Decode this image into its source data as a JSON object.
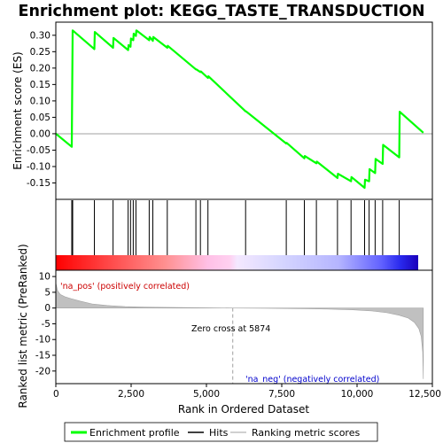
{
  "chart_data": {
    "type": "line",
    "title": "Enrichment plot: KEGG_TASTE_TRANSDUCTION",
    "xlabel": "Rank in Ordered Dataset",
    "ylabel_top": "Enrichment score (ES)",
    "ylabel_bottom": "Ranked list metric (PreRanked)",
    "xlim": [
      0,
      12500
    ],
    "ylim_es": [
      -0.2,
      0.34
    ],
    "ylim_metric": [
      -24,
      12
    ],
    "x_ticks": [
      0,
      2500,
      5000,
      7500,
      10000,
      12500
    ],
    "x_tick_labels": [
      "0",
      "2,500",
      "5,000",
      "7,500",
      "10,000",
      "12,500"
    ],
    "es_ticks": [
      0.3,
      0.25,
      0.2,
      0.15,
      0.1,
      0.05,
      0.0,
      -0.05,
      -0.1,
      -0.15
    ],
    "es_tick_labels": [
      "0.30",
      "0.25",
      "0.20",
      "0.15",
      "0.10",
      "0.05",
      "0.00",
      "-0.05",
      "-0.10",
      "-0.15"
    ],
    "metric_ticks": [
      10,
      5,
      0,
      -5,
      -10,
      -15,
      -20
    ],
    "metric_tick_labels": [
      "10",
      "5",
      "0",
      "-5",
      "-10",
      "-15",
      "-20"
    ],
    "series": [
      {
        "name": "Enrichment profile",
        "color": "#00ff00",
        "x": [
          0,
          530,
          545,
          560,
          1280,
          1295,
          1900,
          1915,
          2400,
          2415,
          2480,
          2495,
          2570,
          2585,
          2660,
          2675,
          3100,
          3115,
          3220,
          3235,
          3700,
          3715,
          4650,
          4665,
          4800,
          4815,
          5050,
          5065,
          6300,
          6315,
          7650,
          7665,
          8250,
          8265,
          8650,
          8665,
          9350,
          9365,
          9800,
          9815,
          10250,
          10265,
          10400,
          10415,
          10600,
          10615,
          10850,
          10865,
          11400,
          11415,
          12200
        ],
        "y": [
          0.0,
          -0.04,
          0.14,
          0.315,
          0.258,
          0.31,
          0.262,
          0.292,
          0.255,
          0.27,
          0.265,
          0.29,
          0.285,
          0.305,
          0.298,
          0.315,
          0.285,
          0.295,
          0.283,
          0.295,
          0.262,
          0.268,
          0.196,
          0.196,
          0.188,
          0.19,
          0.17,
          0.175,
          0.068,
          0.068,
          -0.03,
          -0.028,
          -0.075,
          -0.068,
          -0.09,
          -0.085,
          -0.135,
          -0.122,
          -0.145,
          -0.132,
          -0.165,
          -0.14,
          -0.145,
          -0.108,
          -0.12,
          -0.077,
          -0.092,
          -0.034,
          -0.072,
          0.067,
          0.003
        ]
      }
    ],
    "hits": {
      "name": "Hits",
      "color": "#000000",
      "positions": [
        530,
        560,
        1280,
        1900,
        2400,
        2480,
        2570,
        2660,
        3100,
        3220,
        3700,
        4650,
        4800,
        5050,
        6300,
        7650,
        8250,
        8650,
        9350,
        9800,
        10250,
        10400,
        10600,
        10850,
        11400
      ]
    },
    "ranking_metric": {
      "name": "Ranking metric scores",
      "color": "#c0c0c0",
      "x": [
        0,
        60,
        150,
        300,
        500,
        800,
        1200,
        1700,
        2300,
        3000,
        4000,
        5000,
        5874,
        7000,
        8000,
        9000,
        9800,
        10500,
        11000,
        11400,
        11700,
        11900,
        12050,
        12130,
        12180,
        12200
      ],
      "y": [
        8.0,
        5.5,
        4.3,
        3.6,
        3.0,
        2.2,
        1.3,
        0.8,
        0.45,
        0.28,
        0.15,
        0.07,
        0.0,
        -0.07,
        -0.18,
        -0.32,
        -0.55,
        -0.95,
        -1.5,
        -2.3,
        -3.2,
        -4.5,
        -6.5,
        -9.0,
        -14.0,
        -22.5
      ]
    },
    "zero_cross": {
      "rank": 5874,
      "label": "Zero cross at 5874"
    },
    "pos_label": "'na_pos' (positively correlated)",
    "neg_label": "'na_neg' (negatively correlated)",
    "colorbar": {
      "n": 12200,
      "pos_color": "#ff0000",
      "neg_color": "#0000ff",
      "mid_color": "#ffffff"
    },
    "legend": {
      "placement": "bottom",
      "items": [
        {
          "label": "Enrichment profile",
          "color": "#00ff00"
        },
        {
          "label": "Hits",
          "color": "#000000"
        },
        {
          "label": "Ranking metric scores",
          "color": "#c0c0c0"
        }
      ]
    }
  }
}
